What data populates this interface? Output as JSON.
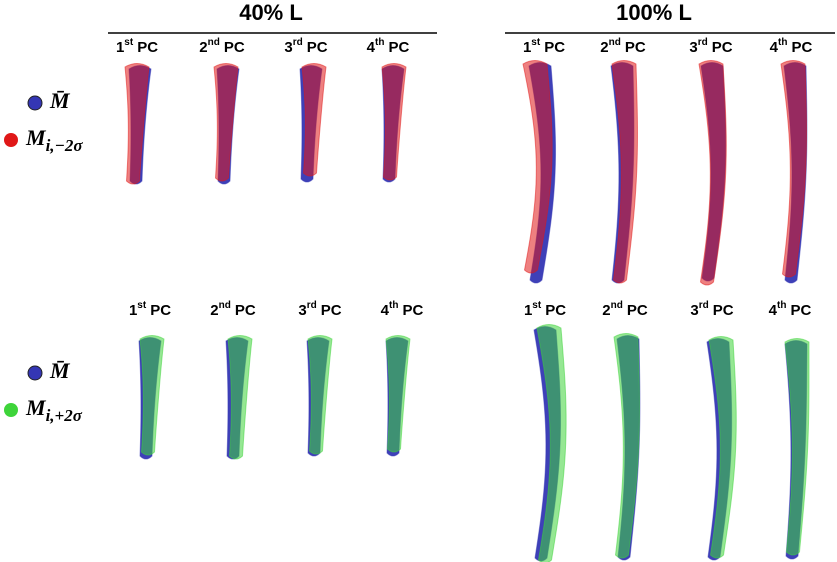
{
  "groups": [
    {
      "title": "40% L"
    },
    {
      "title": "100% L"
    }
  ],
  "rows": [
    {
      "legend": [
        {
          "symbol": "M̄"
        },
        {
          "base": "M",
          "sub": "i,−2σ"
        }
      ],
      "columns": [
        {
          "n": "1",
          "sup": "st",
          "text": "PC"
        },
        {
          "n": "2",
          "sup": "nd",
          "text": "PC"
        },
        {
          "n": "3",
          "sup": "rd",
          "text": "PC"
        },
        {
          "n": "4",
          "sup": "th",
          "text": "PC"
        },
        {
          "n": "1",
          "sup": "st",
          "text": "PC"
        },
        {
          "n": "2",
          "sup": "nd",
          "text": "PC"
        },
        {
          "n": "3",
          "sup": "rd",
          "text": "PC"
        },
        {
          "n": "4",
          "sup": "th",
          "text": "PC"
        }
      ]
    },
    {
      "legend": [
        {
          "symbol": "M̄"
        },
        {
          "base": "M",
          "sub": "i,+2σ"
        }
      ],
      "columns": [
        {
          "n": "1",
          "sup": "st",
          "text": "PC"
        },
        {
          "n": "2",
          "sup": "nd",
          "text": "PC"
        },
        {
          "n": "3",
          "sup": "rd",
          "text": "PC"
        },
        {
          "n": "4",
          "sup": "th",
          "text": "PC"
        },
        {
          "n": "1",
          "sup": "st",
          "text": "PC"
        },
        {
          "n": "2",
          "sup": "nd",
          "text": "PC"
        },
        {
          "n": "3",
          "sup": "rd",
          "text": "PC"
        },
        {
          "n": "4",
          "sup": "th",
          "text": "PC"
        }
      ]
    }
  ]
}
